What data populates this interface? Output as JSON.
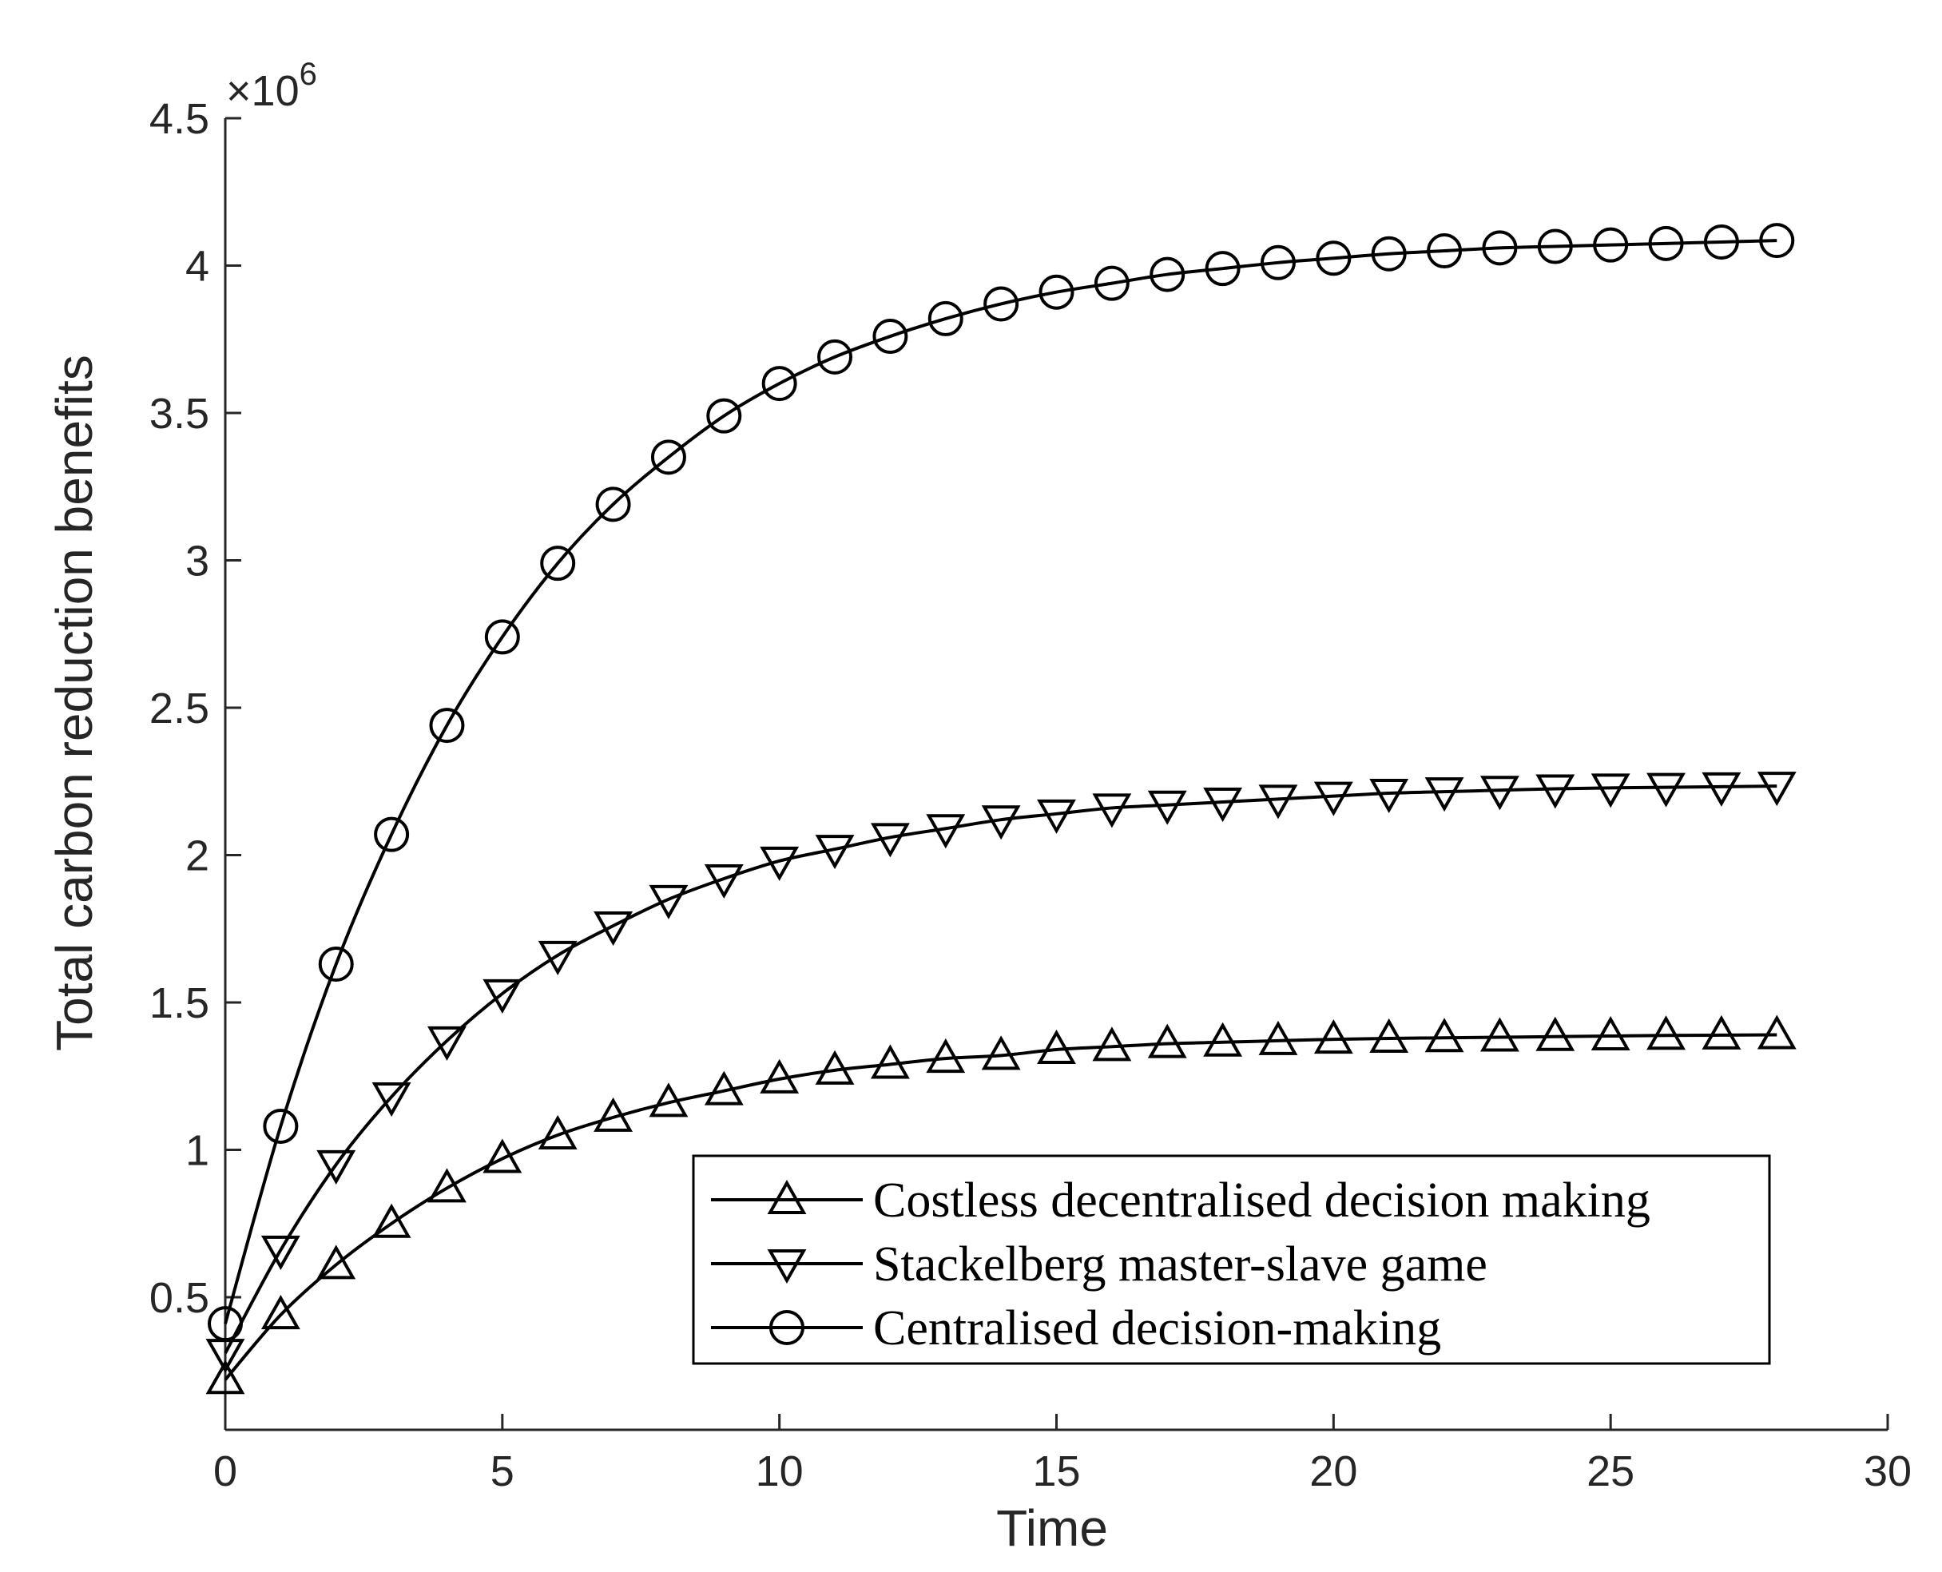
{
  "chart_data": {
    "type": "line",
    "title": "",
    "xlabel": "Time",
    "ylabel": "Total carbon reduction benefits",
    "xlim": [
      0,
      30
    ],
    "ylim": [
      0.05,
      4.5
    ],
    "y_scale_note": "×10^6",
    "y_exponent": {
      "prefix": "×10",
      "power": "6"
    },
    "xticks": [
      "0",
      "5",
      "10",
      "15",
      "20",
      "25",
      "30"
    ],
    "yticks": [
      "0.5",
      "1",
      "1.5",
      "2",
      "2.5",
      "3",
      "3.5",
      "4",
      "4.5"
    ],
    "ytick_values": [
      0.5,
      1,
      1.5,
      2,
      2.5,
      3,
      3.5,
      4,
      4.5
    ],
    "xtick_values": [
      0,
      5,
      10,
      15,
      20,
      25,
      30
    ],
    "grid": false,
    "legend_position": "bottom-right",
    "x": [
      0,
      1,
      2,
      3,
      4,
      5,
      6,
      7,
      8,
      9,
      10,
      11,
      12,
      13,
      14,
      15,
      16,
      17,
      18,
      19,
      20,
      21,
      22,
      23,
      24,
      25,
      26,
      27,
      28
    ],
    "series": [
      {
        "name": "Costless decentralised decision making",
        "marker": "triangle-up",
        "values": [
          0.22,
          0.44,
          0.61,
          0.75,
          0.87,
          0.97,
          1.05,
          1.11,
          1.16,
          1.2,
          1.24,
          1.27,
          1.29,
          1.31,
          1.32,
          1.34,
          1.35,
          1.36,
          1.365,
          1.37,
          1.375,
          1.378,
          1.38,
          1.382,
          1.384,
          1.386,
          1.388,
          1.389,
          1.39
        ]
      },
      {
        "name": "Stackelberg master-slave game",
        "marker": "triangle-down",
        "values": [
          0.31,
          0.66,
          0.95,
          1.18,
          1.37,
          1.53,
          1.66,
          1.76,
          1.85,
          1.92,
          1.98,
          2.02,
          2.06,
          2.09,
          2.12,
          2.14,
          2.16,
          2.17,
          2.18,
          2.19,
          2.2,
          2.21,
          2.215,
          2.22,
          2.225,
          2.228,
          2.23,
          2.232,
          2.234
        ]
      },
      {
        "name": "Centralised decision-making",
        "marker": "circle",
        "values": [
          0.41,
          1.08,
          1.63,
          2.07,
          2.44,
          2.74,
          2.99,
          3.19,
          3.35,
          3.49,
          3.6,
          3.69,
          3.76,
          3.82,
          3.87,
          3.91,
          3.94,
          3.97,
          3.99,
          4.01,
          4.025,
          4.04,
          4.05,
          4.06,
          4.065,
          4.07,
          4.075,
          4.08,
          4.085
        ]
      }
    ]
  }
}
